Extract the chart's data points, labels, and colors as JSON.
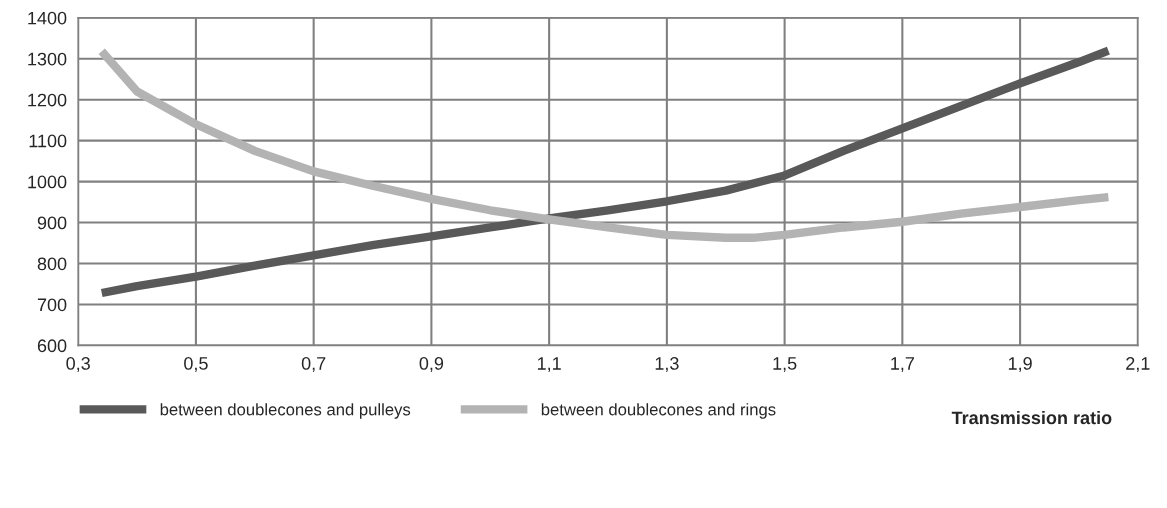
{
  "chart_data": {
    "type": "line",
    "xlabel": "Transmission ratio",
    "xlim": [
      0.3,
      2.1
    ],
    "xticks": [
      {
        "value": 0.3,
        "label": "0,3"
      },
      {
        "value": 0.5,
        "label": "0,5"
      },
      {
        "value": 0.7,
        "label": "0,7"
      },
      {
        "value": 0.9,
        "label": "0,9"
      },
      {
        "value": 1.1,
        "label": "1,1"
      },
      {
        "value": 1.3,
        "label": "1,3"
      },
      {
        "value": 1.5,
        "label": "1,5"
      },
      {
        "value": 1.7,
        "label": "1,7"
      },
      {
        "value": 1.9,
        "label": "1,9"
      },
      {
        "value": 2.1,
        "label": "2,1"
      }
    ],
    "ylim": [
      600,
      1400
    ],
    "yticks": [
      600,
      700,
      800,
      900,
      1000,
      1100,
      1200,
      1300,
      1400
    ],
    "grid": true,
    "legend": "bottom",
    "marker": "none",
    "line_style": "solid",
    "series": [
      {
        "name": "between doublecones and pulleys",
        "color": "#595959",
        "x": [
          0.34,
          0.4,
          0.5,
          0.6,
          0.7,
          0.8,
          0.9,
          1.0,
          1.1,
          1.2,
          1.3,
          1.4,
          1.5,
          1.6,
          1.7,
          1.8,
          1.9,
          2.0,
          2.05
        ],
        "values": [
          728,
          745,
          768,
          795,
          820,
          845,
          866,
          888,
          910,
          930,
          952,
          978,
          1015,
          1075,
          1130,
          1185,
          1240,
          1292,
          1320
        ]
      },
      {
        "name": "between doublecones and rings",
        "color": "#b3b3b3",
        "x": [
          0.34,
          0.4,
          0.5,
          0.6,
          0.7,
          0.8,
          0.9,
          1.0,
          1.1,
          1.2,
          1.3,
          1.4,
          1.45,
          1.5,
          1.6,
          1.7,
          1.8,
          1.9,
          2.0,
          2.05
        ],
        "values": [
          1318,
          1220,
          1140,
          1075,
          1025,
          990,
          958,
          930,
          908,
          888,
          870,
          863,
          863,
          870,
          888,
          902,
          922,
          938,
          955,
          962
        ]
      }
    ]
  }
}
